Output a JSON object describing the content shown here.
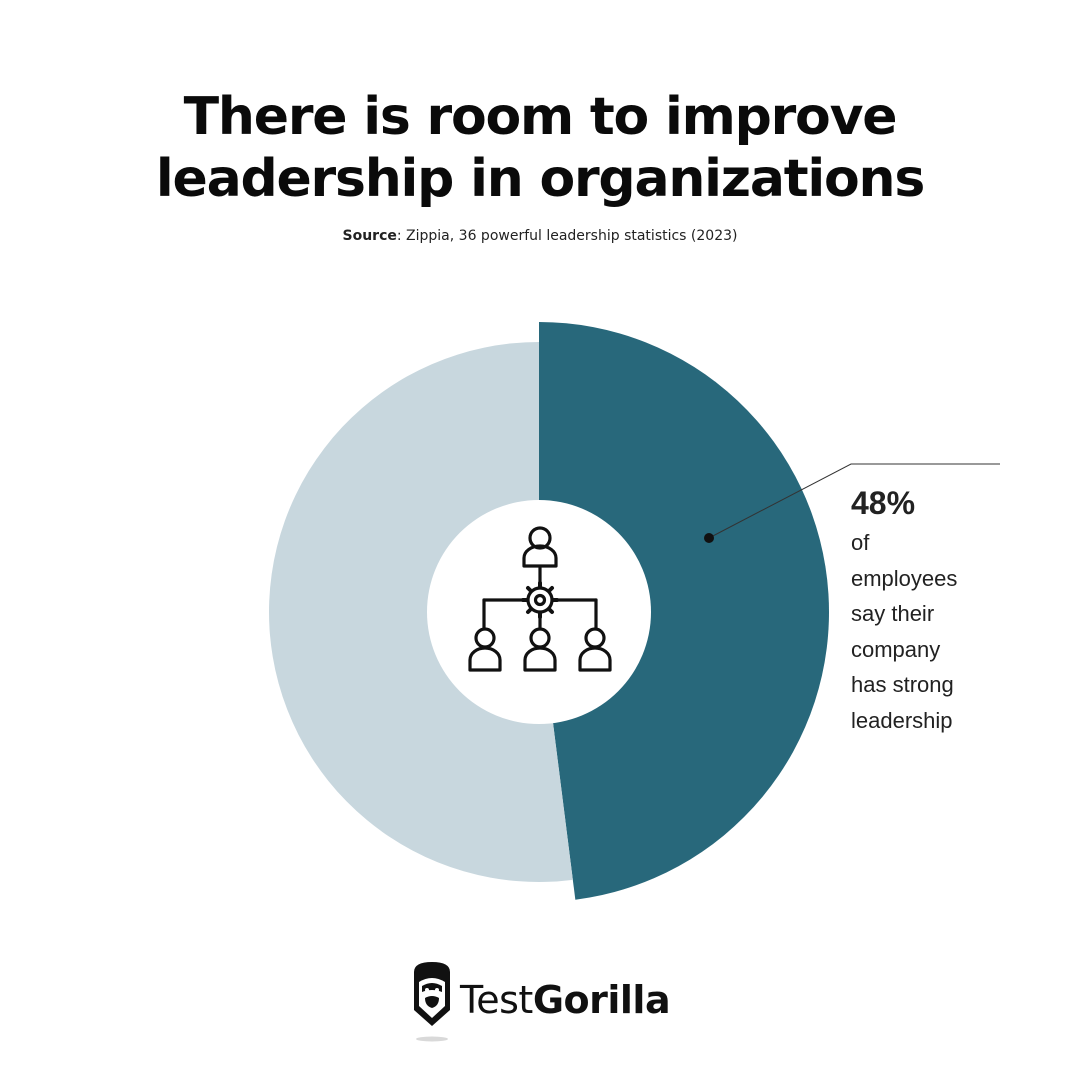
{
  "header": {
    "title_line1": "There is room to improve",
    "title_line2": "leadership in organizations",
    "source_label": "Source",
    "source_text": ": Zippia, 36 powerful leadership statistics (2023)"
  },
  "chart_data": {
    "type": "pie",
    "variant": "donut",
    "slices": [
      {
        "value": 48,
        "color": "#28687b"
      },
      {
        "value": 52,
        "color": "#c8d7de"
      }
    ],
    "center_icon": "org-chart-icon"
  },
  "callout": {
    "value": "48%",
    "text": "of employees say their company has strong leadership"
  },
  "brand": {
    "name_light": "Test",
    "name_bold": "Gorilla",
    "logo_icon": "gorilla-icon"
  }
}
